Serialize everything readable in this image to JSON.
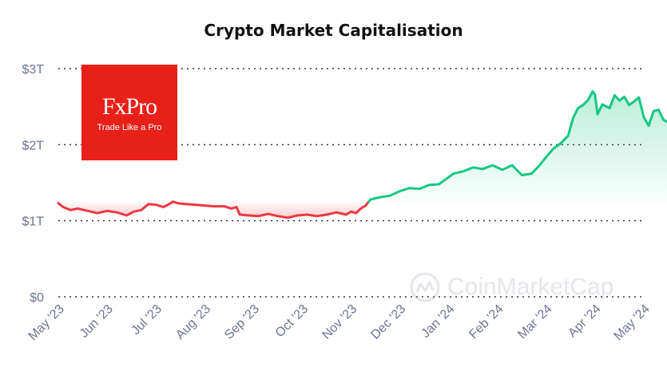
{
  "chart_data": {
    "type": "line",
    "title": "Crypto Market Capitalisation",
    "y_ticks": [
      "$0",
      "$1T",
      "$2T",
      "$3T"
    ],
    "ylim": [
      0,
      3
    ],
    "y_unit": "trillion USD",
    "x_ticks": [
      "May '23",
      "Jun '23",
      "Jul '23",
      "Aug '23",
      "Sep '23",
      "Oct '23",
      "Nov '23",
      "Dec '23",
      "Jan '24",
      "Feb '24",
      "Mar '24",
      "Apr '24",
      "May '24"
    ],
    "grid": "horizontal dotted",
    "baseline": 1.25,
    "colors": {
      "above": "#16c784",
      "below": "#ea3943",
      "axis_text": "#6b7690"
    },
    "series": [
      {
        "values": [
          [
            0.0,
            1.23
          ],
          [
            0.1,
            1.18
          ],
          [
            0.25,
            1.14
          ],
          [
            0.4,
            1.16
          ],
          [
            0.6,
            1.13
          ],
          [
            0.8,
            1.1
          ],
          [
            1.0,
            1.13
          ],
          [
            1.2,
            1.11
          ],
          [
            1.4,
            1.07
          ],
          [
            1.55,
            1.12
          ],
          [
            1.7,
            1.14
          ],
          [
            1.85,
            1.22
          ],
          [
            2.0,
            1.21
          ],
          [
            2.15,
            1.18
          ],
          [
            2.25,
            1.21
          ],
          [
            2.35,
            1.25
          ],
          [
            2.45,
            1.23
          ],
          [
            2.6,
            1.22
          ],
          [
            2.8,
            1.21
          ],
          [
            3.0,
            1.2
          ],
          [
            3.2,
            1.19
          ],
          [
            3.4,
            1.19
          ],
          [
            3.55,
            1.16
          ],
          [
            3.65,
            1.18
          ],
          [
            3.72,
            1.08
          ],
          [
            3.9,
            1.07
          ],
          [
            4.1,
            1.06
          ],
          [
            4.3,
            1.09
          ],
          [
            4.5,
            1.06
          ],
          [
            4.7,
            1.04
          ],
          [
            4.9,
            1.07
          ],
          [
            5.1,
            1.08
          ],
          [
            5.3,
            1.06
          ],
          [
            5.5,
            1.08
          ],
          [
            5.7,
            1.11
          ],
          [
            5.9,
            1.08
          ],
          [
            6.0,
            1.12
          ],
          [
            6.1,
            1.1
          ],
          [
            6.2,
            1.16
          ],
          [
            6.3,
            1.2
          ],
          [
            6.4,
            1.28
          ],
          [
            6.6,
            1.31
          ],
          [
            6.8,
            1.33
          ],
          [
            7.0,
            1.39
          ],
          [
            7.2,
            1.43
          ],
          [
            7.4,
            1.42
          ],
          [
            7.6,
            1.47
          ],
          [
            7.8,
            1.48
          ],
          [
            7.95,
            1.55
          ],
          [
            8.1,
            1.62
          ],
          [
            8.3,
            1.65
          ],
          [
            8.5,
            1.7
          ],
          [
            8.7,
            1.68
          ],
          [
            8.9,
            1.73
          ],
          [
            9.1,
            1.67
          ],
          [
            9.3,
            1.73
          ],
          [
            9.5,
            1.6
          ],
          [
            9.7,
            1.62
          ],
          [
            9.85,
            1.72
          ],
          [
            10.0,
            1.84
          ],
          [
            10.15,
            1.95
          ],
          [
            10.3,
            2.02
          ],
          [
            10.45,
            2.12
          ],
          [
            10.55,
            2.35
          ],
          [
            10.65,
            2.48
          ],
          [
            10.75,
            2.52
          ],
          [
            10.85,
            2.58
          ],
          [
            10.95,
            2.7
          ],
          [
            11.0,
            2.66
          ],
          [
            11.05,
            2.4
          ],
          [
            11.15,
            2.53
          ],
          [
            11.3,
            2.48
          ],
          [
            11.4,
            2.65
          ],
          [
            11.5,
            2.58
          ],
          [
            11.6,
            2.63
          ],
          [
            11.7,
            2.52
          ],
          [
            11.8,
            2.57
          ],
          [
            11.9,
            2.62
          ],
          [
            12.0,
            2.36
          ],
          [
            12.1,
            2.25
          ],
          [
            12.2,
            2.44
          ],
          [
            12.3,
            2.46
          ],
          [
            12.4,
            2.33
          ],
          [
            12.5,
            2.29
          ]
        ]
      }
    ]
  },
  "branding": {
    "logo_name": "FxPro",
    "logo_tagline": "Trade Like a Pro",
    "watermark": "CoinMarketCap"
  }
}
